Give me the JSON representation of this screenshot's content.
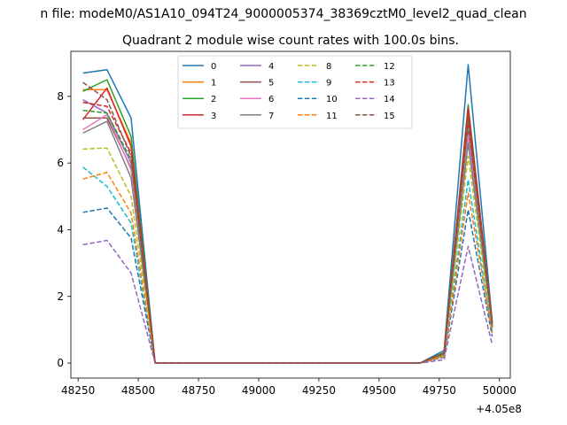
{
  "chart_data": {
    "type": "line",
    "suptitle": "n file: modeM0/AS1A10_094T24_9000005374_38369cztM0_level2_quad_clean",
    "title": "Quadrant 2 module wise count rates with 100.0s bins.",
    "xlabel": "",
    "ylabel": "",
    "x_offset_label": "+4.05e8",
    "xlim": [
      48220,
      50045
    ],
    "ylim": [
      -0.45,
      9.35
    ],
    "x_ticks": [
      48250,
      48500,
      48750,
      49000,
      49250,
      49500,
      49750,
      50000
    ],
    "x_tick_labels": [
      "48250",
      "48500",
      "48750",
      "49000",
      "49250",
      "49500",
      "49750",
      "50000"
    ],
    "y_ticks": [
      0,
      2,
      4,
      6,
      8
    ],
    "y_tick_labels": [
      "0",
      "2",
      "4",
      "6",
      "8"
    ],
    "grid": false,
    "legend_position": "top-center",
    "legend_columns": 4,
    "x": [
      48270,
      48370,
      48470,
      48570,
      48670,
      48770,
      48870,
      48970,
      49070,
      49170,
      49270,
      49370,
      49470,
      49570,
      49670,
      49770,
      49870,
      49970
    ],
    "series": [
      {
        "name": "0",
        "color": "#1f77b4",
        "dash": false,
        "values": [
          8.7,
          8.8,
          7.35,
          0,
          0,
          0,
          0,
          0,
          0,
          0,
          0,
          0,
          0,
          0,
          0,
          0.38,
          8.95,
          1.25
        ]
      },
      {
        "name": "1",
        "color": "#ff7f0e",
        "dash": false,
        "values": [
          8.2,
          8.2,
          6.6,
          0,
          0,
          0,
          0,
          0,
          0,
          0,
          0,
          0,
          0,
          0,
          0,
          0.28,
          7.5,
          1.15
        ]
      },
      {
        "name": "2",
        "color": "#2ca02c",
        "dash": false,
        "values": [
          8.15,
          8.5,
          6.8,
          0,
          0,
          0,
          0,
          0,
          0,
          0,
          0,
          0,
          0,
          0,
          0,
          0.32,
          7.75,
          1.2
        ]
      },
      {
        "name": "3",
        "color": "#d62728",
        "dash": false,
        "values": [
          7.3,
          8.25,
          6.5,
          0,
          0,
          0,
          0,
          0,
          0,
          0,
          0,
          0,
          0,
          0,
          0,
          0.3,
          7.65,
          1.2
        ]
      },
      {
        "name": "4",
        "color": "#9467bd",
        "dash": false,
        "values": [
          7.9,
          7.5,
          6.0,
          0,
          0,
          0,
          0,
          0,
          0,
          0,
          0,
          0,
          0,
          0,
          0,
          0.25,
          7.0,
          1.1
        ]
      },
      {
        "name": "5",
        "color": "#8c564b",
        "dash": false,
        "values": [
          7.35,
          7.35,
          5.85,
          0,
          0,
          0,
          0,
          0,
          0,
          0,
          0,
          0,
          0,
          0,
          0,
          0.25,
          6.9,
          1.1
        ]
      },
      {
        "name": "6",
        "color": "#e377c2",
        "dash": false,
        "values": [
          7.0,
          7.45,
          5.8,
          0,
          0,
          0,
          0,
          0,
          0,
          0,
          0,
          0,
          0,
          0,
          0,
          0.25,
          6.85,
          1.05
        ]
      },
      {
        "name": "7",
        "color": "#7f7f7f",
        "dash": false,
        "values": [
          6.9,
          7.25,
          5.55,
          0,
          0,
          0,
          0,
          0,
          0,
          0,
          0,
          0,
          0,
          0,
          0,
          0.25,
          6.6,
          1.05
        ]
      },
      {
        "name": "8",
        "color": "#bcbd22",
        "dash": true,
        "values": [
          6.42,
          6.45,
          5.0,
          0,
          0,
          0,
          0,
          0,
          0,
          0,
          0,
          0,
          0,
          0,
          0,
          0.22,
          6.2,
          0.95
        ]
      },
      {
        "name": "9",
        "color": "#17becf",
        "dash": true,
        "values": [
          5.88,
          5.3,
          4.2,
          0,
          0,
          0,
          0,
          0,
          0,
          0,
          0,
          0,
          0,
          0,
          0,
          0.2,
          5.5,
          0.9
        ]
      },
      {
        "name": "10",
        "color": "#1f77b4",
        "dash": true,
        "values": [
          4.52,
          4.65,
          3.75,
          0,
          0,
          0,
          0,
          0,
          0,
          0,
          0,
          0,
          0,
          0,
          0,
          0.18,
          4.6,
          0.8
        ]
      },
      {
        "name": "11",
        "color": "#ff7f0e",
        "dash": true,
        "values": [
          5.52,
          5.72,
          4.5,
          0,
          0,
          0,
          0,
          0,
          0,
          0,
          0,
          0,
          0,
          0,
          0,
          0.2,
          5.1,
          0.9
        ]
      },
      {
        "name": "12",
        "color": "#2ca02c",
        "dash": true,
        "values": [
          7.58,
          7.5,
          6.1,
          0,
          0,
          0,
          0,
          0,
          0,
          0,
          0,
          0,
          0,
          0,
          0,
          0.28,
          7.2,
          1.1
        ]
      },
      {
        "name": "13",
        "color": "#d62728",
        "dash": true,
        "values": [
          7.82,
          7.7,
          6.3,
          0,
          0,
          0,
          0,
          0,
          0,
          0,
          0,
          0,
          0,
          0,
          0,
          0.3,
          7.3,
          1.15
        ]
      },
      {
        "name": "14",
        "color": "#9467bd",
        "dash": true,
        "values": [
          3.55,
          3.68,
          2.7,
          0,
          0,
          0,
          0,
          0,
          0,
          0,
          0,
          0,
          0,
          0,
          0,
          0.1,
          3.5,
          0.55
        ]
      },
      {
        "name": "15",
        "color": "#8c564b",
        "dash": true,
        "values": [
          8.42,
          7.9,
          6.2,
          0,
          0,
          0,
          0,
          0,
          0,
          0,
          0,
          0,
          0,
          0,
          0,
          0.3,
          7.4,
          1.15
        ]
      }
    ]
  }
}
